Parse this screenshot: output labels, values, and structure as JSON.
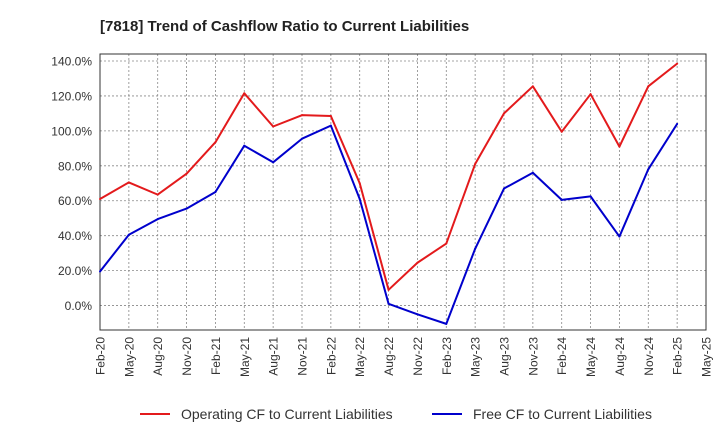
{
  "chart_data": {
    "type": "line",
    "title": "[7818]  Trend of Cashflow Ratio to Current Liabilities",
    "xlabel": "",
    "ylabel": "",
    "ylim": [
      -14,
      144
    ],
    "grid": true,
    "legend_position": "bottom",
    "y_ticks": [
      {
        "value": 0,
        "label": "0.0%"
      },
      {
        "value": 20,
        "label": "20.0%"
      },
      {
        "value": 40,
        "label": "40.0%"
      },
      {
        "value": 60,
        "label": "60.0%"
      },
      {
        "value": 80,
        "label": "80.0%"
      },
      {
        "value": 100,
        "label": "100.0%"
      },
      {
        "value": 120,
        "label": "120.0%"
      },
      {
        "value": 140,
        "label": "140.0%"
      }
    ],
    "x_ticks": [
      "Feb-20",
      "May-20",
      "Aug-20",
      "Nov-20",
      "Feb-21",
      "May-21",
      "Aug-21",
      "Nov-21",
      "Feb-22",
      "May-22",
      "Aug-22",
      "Nov-22",
      "Feb-23",
      "May-23",
      "Aug-23",
      "Nov-23",
      "Feb-24",
      "May-24",
      "Aug-24",
      "Nov-24",
      "Feb-25",
      "May-25"
    ],
    "x": [
      "Feb-20",
      "May-20",
      "Aug-20",
      "Nov-20",
      "Feb-21",
      "May-21",
      "Aug-21",
      "Nov-21",
      "Feb-22",
      "May-22",
      "Aug-22",
      "Nov-22",
      "Feb-23",
      "May-23",
      "Aug-23",
      "Nov-23",
      "Feb-24",
      "May-24",
      "Aug-24",
      "Nov-24",
      "Feb-25"
    ],
    "series": [
      {
        "name": "Operating CF to Current Liabilities",
        "color": "#e31a1c",
        "values": [
          61.0,
          70.5,
          63.5,
          75.5,
          93.5,
          121.5,
          102.5,
          109.0,
          108.5,
          70.0,
          9.0,
          24.5,
          35.5,
          81.0,
          110.0,
          125.5,
          99.5,
          121.0,
          91.0,
          125.5,
          138.5
        ]
      },
      {
        "name": "Free CF to Current Liabilities",
        "color": "#0000cc",
        "values": [
          19.5,
          40.5,
          49.5,
          55.5,
          65.0,
          91.5,
          82.0,
          95.5,
          103.0,
          61.0,
          1.0,
          -5.0,
          -10.5,
          32.5,
          67.0,
          76.0,
          60.5,
          62.5,
          39.5,
          78.0,
          104.0
        ]
      }
    ]
  }
}
